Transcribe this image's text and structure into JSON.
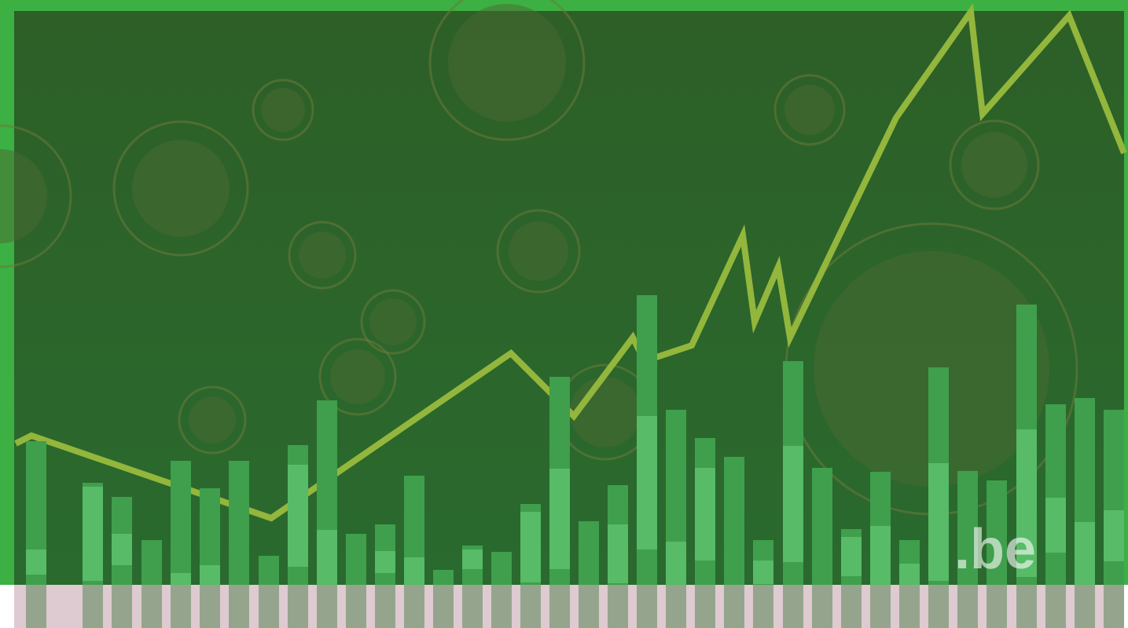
{
  "logo": ".be"
}
